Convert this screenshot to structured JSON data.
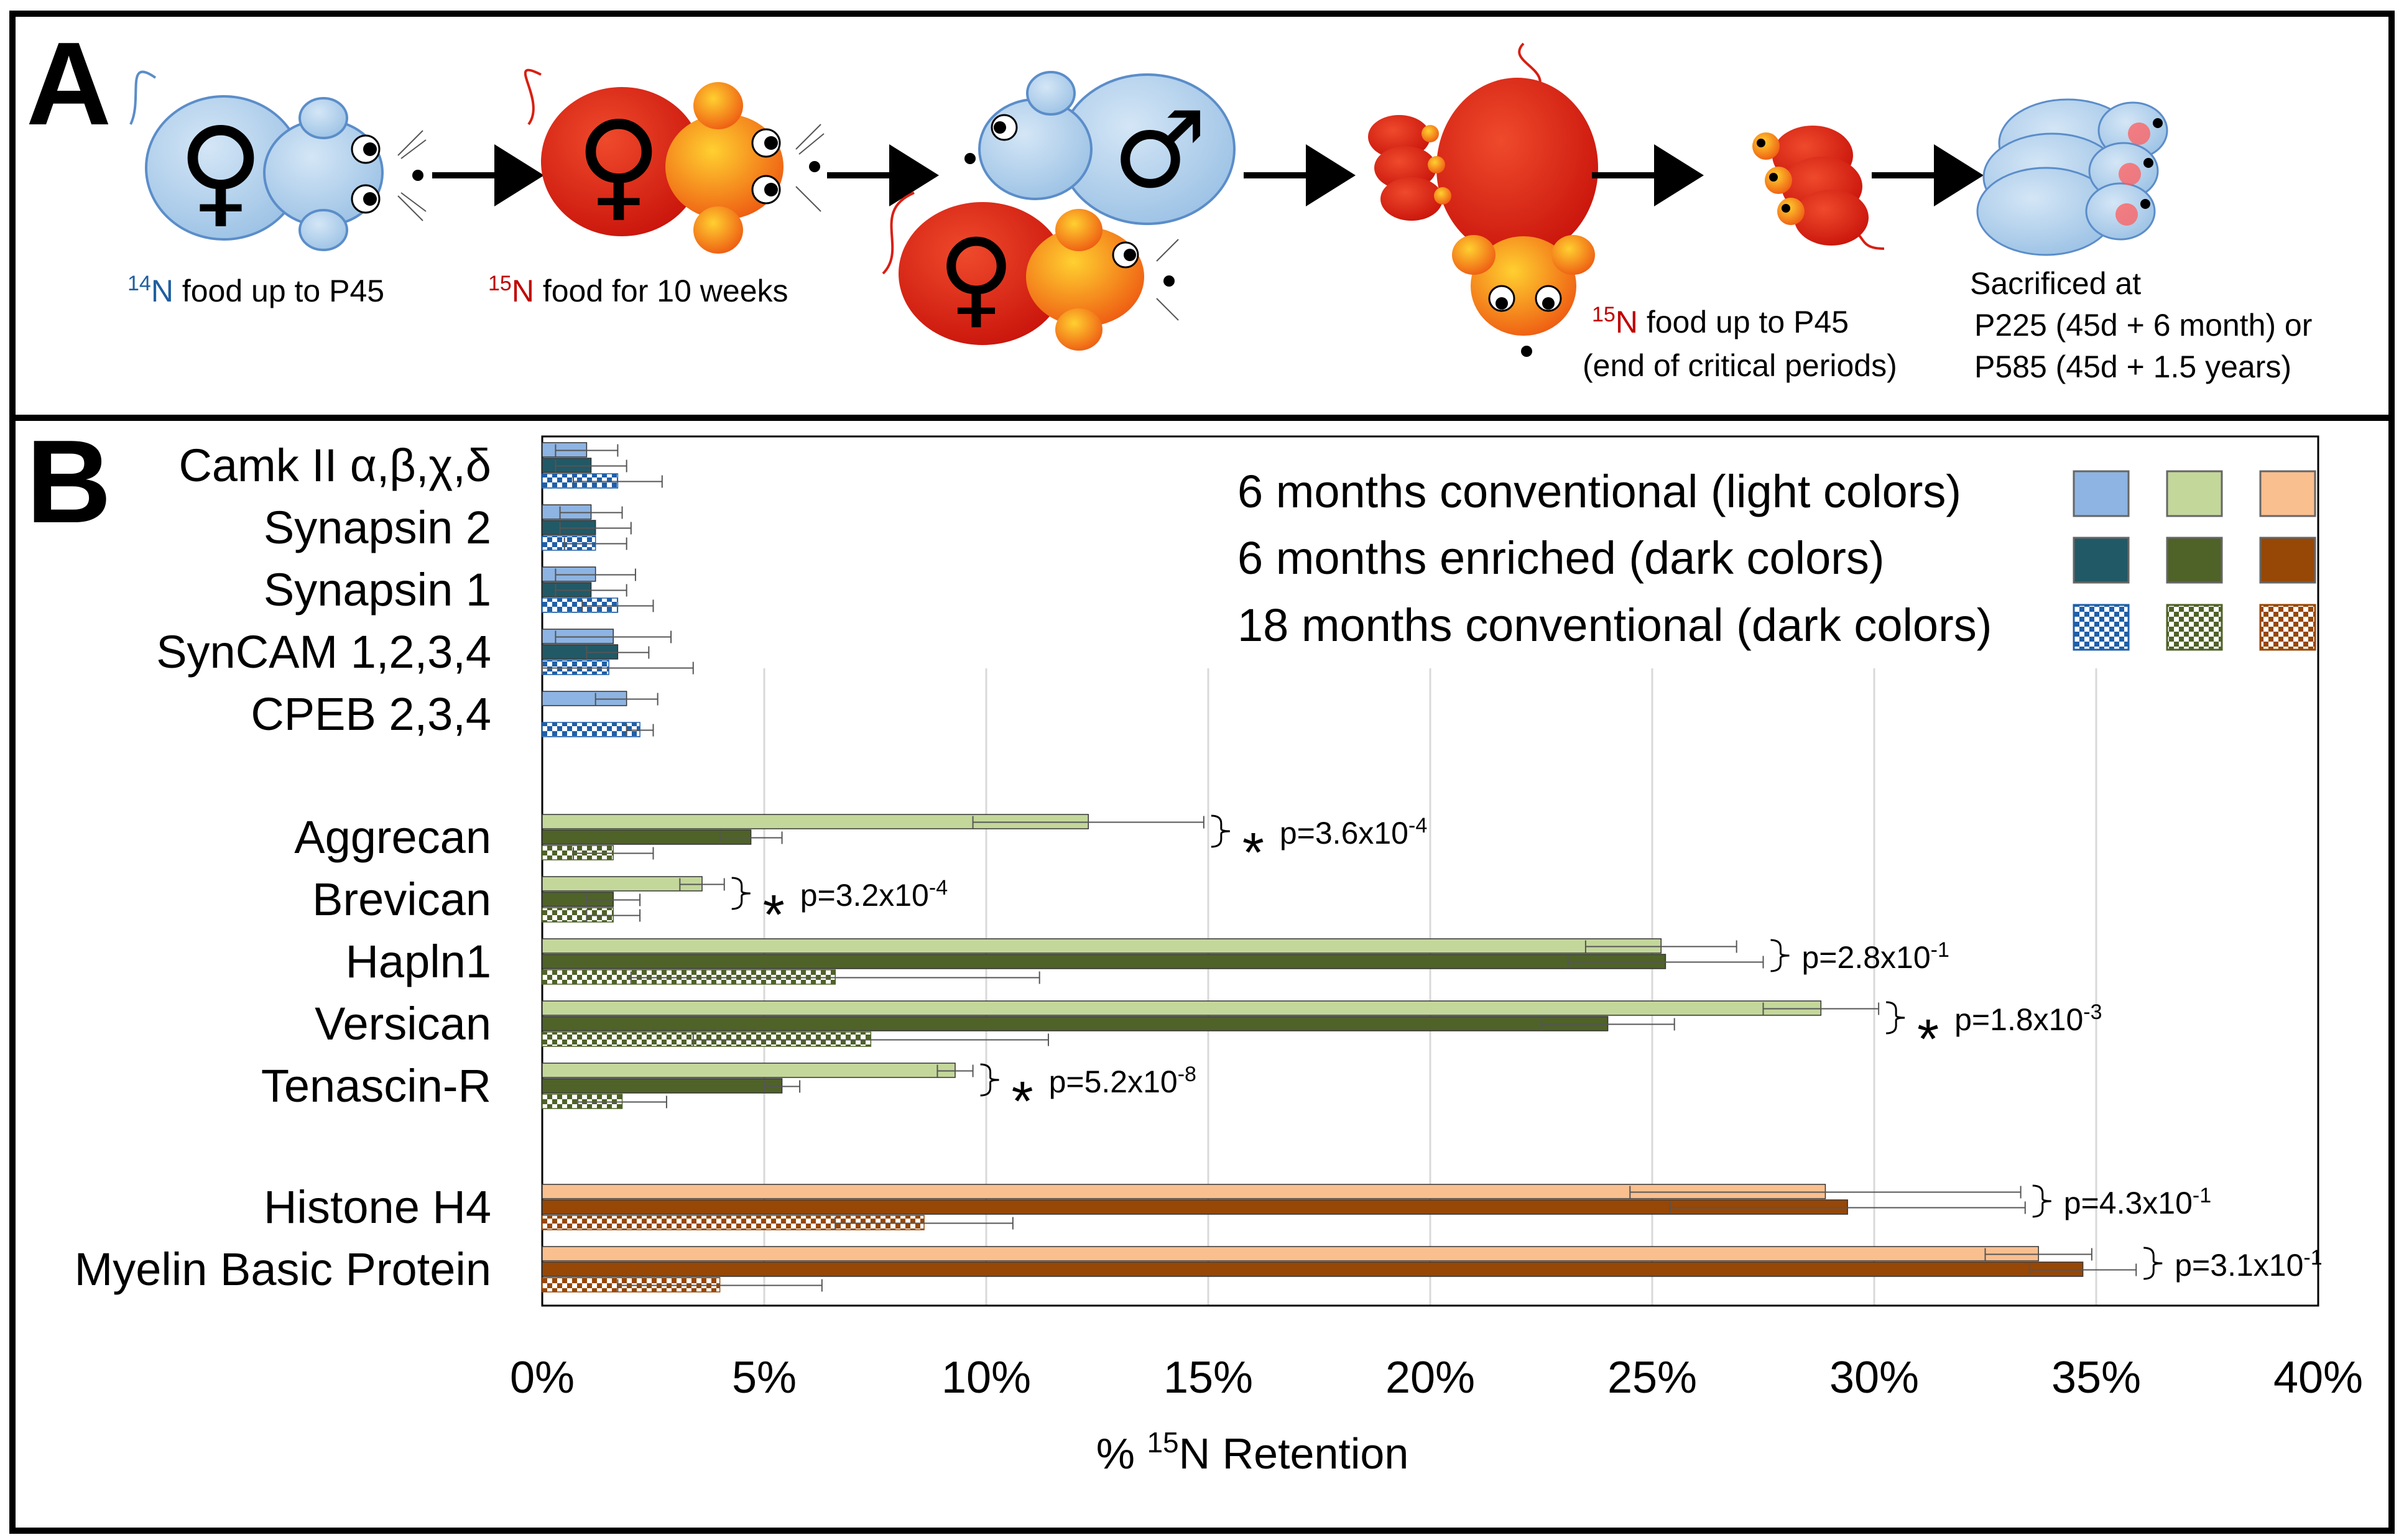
{
  "panel_a": {
    "label": "A",
    "captions": {
      "step1_sup": "14",
      "step1_n": "N",
      "step1_text": " food up to P45",
      "step2_sup": "15",
      "step2_n": "N",
      "step2_text": " food for 10 weeks",
      "step3_sup": "15",
      "step3_n": "N",
      "step3_text": " food up to P45",
      "step3_line2": "(end of critical periods)",
      "step4_line1": "Sacrificed at",
      "step4_line2": "P225 (45d + 6 month) or",
      "step4_line3": "P585 (45d + 1.5 years)"
    },
    "symbols": {
      "female": "♀",
      "male": "♂"
    },
    "colors": {
      "n14_text": "#1f5f9f",
      "n15_text": "#c00000",
      "mouse_light": "#a9cbe8",
      "mouse_red": "#d81f12",
      "mouse_orange": "#f7a416"
    }
  },
  "panel_b": {
    "label": "B"
  },
  "chart_data": {
    "type": "bar",
    "orientation": "horizontal",
    "xlabel_prefix": "% ",
    "xlabel_sup": "15",
    "xlabel_suffix": "N Retention",
    "xlim": [
      0,
      40
    ],
    "xticks": [
      0,
      5,
      10,
      15,
      20,
      25,
      30,
      35,
      40
    ],
    "xtick_labels": [
      "0%",
      "5%",
      "10%",
      "15%",
      "20%",
      "25%",
      "30%",
      "35%",
      "40%"
    ],
    "grid": true,
    "legend_position": "top-right",
    "legend": [
      {
        "label": "6 months conventional (light colors)",
        "colors": [
          "#8db4e2",
          "#c4d79b",
          "#fabf8f"
        ],
        "pattern": "solid"
      },
      {
        "label": "6 months enriched (dark colors)",
        "colors": [
          "#215967",
          "#4f6228",
          "#974706"
        ],
        "pattern": "solid"
      },
      {
        "label": "18 months conventional (dark colors)",
        "colors": [
          "#1f5fa8",
          "#4f6228",
          "#974706"
        ],
        "pattern": "checker"
      }
    ],
    "series_names": [
      "6 months conventional",
      "6 months enriched",
      "18 months conventional"
    ],
    "groups": [
      {
        "label": "Camk II α,β,χ,δ",
        "values": [
          1.0,
          1.1,
          1.7
        ],
        "errors": [
          0.7,
          0.8,
          1.0
        ],
        "palette": "blue"
      },
      {
        "label": "Synapsin 2",
        "values": [
          1.1,
          1.2,
          1.2
        ],
        "errors": [
          0.7,
          0.8,
          0.7
        ],
        "palette": "blue"
      },
      {
        "label": "Synapsin 1",
        "values": [
          1.2,
          1.1,
          1.7
        ],
        "errors": [
          0.9,
          0.8,
          0.8
        ],
        "palette": "blue"
      },
      {
        "label": "SynCAM 1,2,3,4",
        "values": [
          1.6,
          1.7,
          1.5
        ],
        "errors": [
          1.3,
          0.7,
          1.9
        ],
        "palette": "blue"
      },
      {
        "label": "CPEB 2,3,4",
        "values": [
          1.9,
          null,
          2.2
        ],
        "errors": [
          0.7,
          null,
          0.3
        ],
        "palette": "blue"
      },
      {
        "label": "Aggrecan",
        "values": [
          12.3,
          4.7,
          1.6
        ],
        "errors": [
          2.6,
          0.7,
          0.9
        ],
        "palette": "green",
        "star": true,
        "p_base": "p=3.6x10",
        "p_exp": "-4"
      },
      {
        "label": "Brevican",
        "values": [
          3.6,
          1.6,
          1.6
        ],
        "errors": [
          0.5,
          0.6,
          0.6
        ],
        "palette": "green",
        "star": true,
        "p_base": "p=3.2x10",
        "p_exp": "-4"
      },
      {
        "label": "Hapln1",
        "values": [
          25.2,
          25.3,
          6.6
        ],
        "errors": [
          1.7,
          2.2,
          4.6
        ],
        "palette": "green",
        "star": false,
        "p_base": "p=2.8x10",
        "p_exp": "-1"
      },
      {
        "label": "Versican",
        "values": [
          28.8,
          24.0,
          7.4
        ],
        "errors": [
          1.3,
          1.5,
          4.0
        ],
        "palette": "green",
        "star": true,
        "p_base": "p=1.8x10",
        "p_exp": "-3"
      },
      {
        "label": "Tenascin-R",
        "values": [
          9.3,
          5.4,
          1.8
        ],
        "errors": [
          0.4,
          0.4,
          1.0
        ],
        "palette": "green",
        "star": true,
        "p_base": "p=5.2x10",
        "p_exp": "-8"
      },
      {
        "label": "Histone H4",
        "values": [
          28.9,
          29.4,
          8.6
        ],
        "errors": [
          4.4,
          4.0,
          2.0
        ],
        "palette": "orange",
        "star": false,
        "p_base": "p=4.3x10",
        "p_exp": "-1"
      },
      {
        "label": "Myelin Basic Protein",
        "values": [
          33.7,
          34.7,
          4.0
        ],
        "errors": [
          1.2,
          1.2,
          2.3
        ],
        "palette": "orange",
        "star": false,
        "p_base": "p=3.1x10",
        "p_exp": "-1"
      }
    ],
    "palettes": {
      "blue": {
        "light": "#8db4e2",
        "dark": "#215967",
        "check": "#1f5fa8"
      },
      "green": {
        "light": "#c4d79b",
        "dark": "#4f6228",
        "check": "#4f6228"
      },
      "orange": {
        "light": "#fabf8f",
        "dark": "#974706",
        "check": "#974706"
      }
    }
  }
}
